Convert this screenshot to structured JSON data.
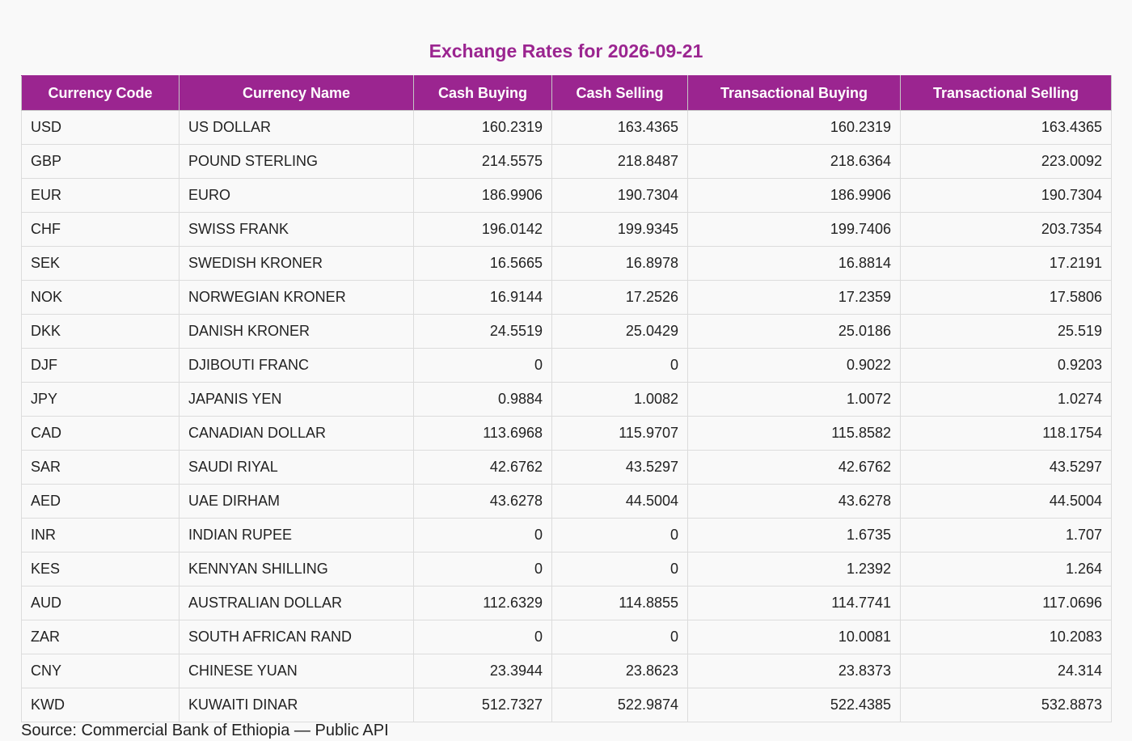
{
  "page": {
    "title": "Exchange Rates for 2026-09-21",
    "source": "Source: Commercial Bank of Ethiopia — Public API"
  },
  "colors": {
    "header_bg": "#9b2590",
    "title": "#9b2590",
    "header_text": "#ffffff"
  },
  "table": {
    "headers": [
      "Currency Code",
      "Currency Name",
      "Cash Buying",
      "Cash Selling",
      "Transactional Buying",
      "Transactional Selling"
    ],
    "rows": [
      [
        "USD",
        "US DOLLAR",
        "160.2319",
        "163.4365",
        "160.2319",
        "163.4365"
      ],
      [
        "GBP",
        "POUND STERLING",
        "214.5575",
        "218.8487",
        "218.6364",
        "223.0092"
      ],
      [
        "EUR",
        "EURO",
        "186.9906",
        "190.7304",
        "186.9906",
        "190.7304"
      ],
      [
        "CHF",
        "SWISS FRANK",
        "196.0142",
        "199.9345",
        "199.7406",
        "203.7354"
      ],
      [
        "SEK",
        "SWEDISH KRONER",
        "16.5665",
        "16.8978",
        "16.8814",
        "17.2191"
      ],
      [
        "NOK",
        "NORWEGIAN KRONER",
        "16.9144",
        "17.2526",
        "17.2359",
        "17.5806"
      ],
      [
        "DKK",
        "DANISH KRONER",
        "24.5519",
        "25.0429",
        "25.0186",
        "25.519"
      ],
      [
        "DJF",
        "DJIBOUTI FRANC",
        "0",
        "0",
        "0.9022",
        "0.9203"
      ],
      [
        "JPY",
        "JAPANIS YEN",
        "0.9884",
        "1.0082",
        "1.0072",
        "1.0274"
      ],
      [
        "CAD",
        "CANADIAN DOLLAR",
        "113.6968",
        "115.9707",
        "115.8582",
        "118.1754"
      ],
      [
        "SAR",
        "SAUDI RIYAL",
        "42.6762",
        "43.5297",
        "42.6762",
        "43.5297"
      ],
      [
        "AED",
        "UAE DIRHAM",
        "43.6278",
        "44.5004",
        "43.6278",
        "44.5004"
      ],
      [
        "INR",
        "INDIAN RUPEE",
        "0",
        "0",
        "1.6735",
        "1.707"
      ],
      [
        "KES",
        "KENNYAN SHILLING",
        "0",
        "0",
        "1.2392",
        "1.264"
      ],
      [
        "AUD",
        "AUSTRALIAN DOLLAR",
        "112.6329",
        "114.8855",
        "114.7741",
        "117.0696"
      ],
      [
        "ZAR",
        "SOUTH AFRICAN RAND",
        "0",
        "0",
        "10.0081",
        "10.2083"
      ],
      [
        "CNY",
        "CHINESE YUAN",
        "23.3944",
        "23.8623",
        "23.8373",
        "24.314"
      ],
      [
        "KWD",
        "KUWAITI DINAR",
        "512.7327",
        "522.9874",
        "522.4385",
        "532.8873"
      ]
    ]
  }
}
